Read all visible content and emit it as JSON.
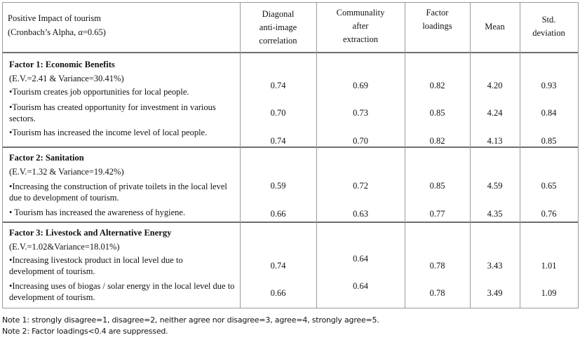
{
  "header": {
    "title": "Positive Impact of tourism",
    "alpha": "(Cronbach’s Alpha, α=0.65)",
    "columns": [
      "Diagonal\nanti-image\ncorrelation",
      "Communality\nafter\nextraction",
      "Factor\nloadings",
      "Mean",
      "Std.\ndeviation"
    ]
  },
  "factors": [
    {
      "name": "Factor 1: Economic Benefits",
      "stats": "(E.V.=2.41 & Variance=30.41%)",
      "items": [
        {
          "text": "•Tourism creates job opportunities for local people.",
          "diag": "0.74",
          "comm": "0.69",
          "load": "0.82",
          "mean": "4.20",
          "sd": "0.93"
        },
        {
          "text": "•Tourism has created opportunity for investment in various sectors.",
          "diag": "0.70",
          "comm": "0.73",
          "load": "0.85",
          "mean": "4.24",
          "sd": "0.84"
        },
        {
          "text": "•Tourism has increased the income level of local people.",
          "diag": "0.74",
          "comm": "0.70",
          "load": "0.82",
          "mean": "4.13",
          "sd": "0.85"
        }
      ]
    },
    {
      "name": "Factor 2: Sanitation",
      "stats": "(E.V.=1.32 & Variance=19.42%)",
      "items": [
        {
          "text": "•Increasing the construction of private toilets in the local level due to development of tourism.",
          "diag": "0.59",
          "comm": "0.72",
          "load": "0.85",
          "mean": "4.59",
          "sd": "0.65"
        },
        {
          "text": "• Tourism has increased the awareness of hygiene.",
          "diag": "0.66",
          "comm": "0.63",
          "load": "0.77",
          "mean": "4.35",
          "sd": "0.76"
        }
      ]
    },
    {
      "name": "Factor 3: Livestock and Alternative Energy",
      "stats": "(E.V.=1.02&Variance=18.01%)",
      "items": [
        {
          "text": "•Increasing livestock product in local level due to development of tourism.",
          "diag": "0.74",
          "comm": "0.64",
          "load": "0.78",
          "mean": "3.43",
          "sd": "1.01"
        },
        {
          "text": "•Increasing uses of biogas / solar energy in the local level due to development of tourism.",
          "diag": "0.66",
          "comm": "0.64",
          "load": "0.78",
          "mean": "3.49",
          "sd": "1.09"
        }
      ]
    }
  ],
  "notes": [
    "Note 1: strongly disagree=1, disagree=2, neither agree nor disagree=3, agree=4, strongly agree=5.",
    "Note 2: Factor loadings<0.4 are suppressed."
  ]
}
